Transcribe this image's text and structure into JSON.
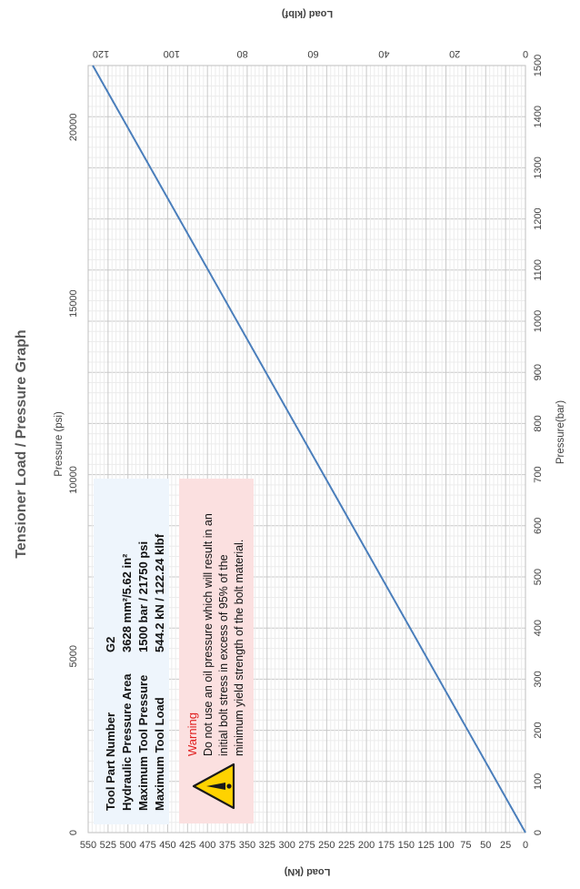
{
  "chart_data": {
    "type": "line",
    "title": "Tensioner Load / Pressure Graph",
    "series": [
      {
        "x_bar": [
          0,
          1500
        ],
        "load_kN": [
          0,
          544.2
        ]
      }
    ],
    "axes": {
      "pressure_bar": {
        "label": "Pressure(bar)",
        "range": [
          0,
          1500
        ],
        "major_step": 100,
        "ticks": [
          "0",
          "100",
          "200",
          "300",
          "400",
          "500",
          "600",
          "700",
          "800",
          "900",
          "1000",
          "1100",
          "1200",
          "1300",
          "1400",
          "1500"
        ]
      },
      "pressure_psi": {
        "label": "Pressure (psi)",
        "range": [
          0,
          21750
        ],
        "ticks": [
          "0",
          "5000",
          "10000",
          "15000",
          "20000"
        ]
      },
      "load_kN": {
        "label": "Load (kN)",
        "range": [
          0,
          550
        ],
        "major_step": 25,
        "ticks": [
          "0",
          "25",
          "50",
          "75",
          "100",
          "125",
          "150",
          "175",
          "200",
          "225",
          "250",
          "275",
          "300",
          "325",
          "350",
          "375",
          "400",
          "425",
          "450",
          "475",
          "500",
          "525",
          "550"
        ]
      },
      "load_klbf": {
        "label": "Load (klbf)",
        "range": [
          0,
          123.6
        ],
        "ticks": [
          "0",
          "20",
          "40",
          "60",
          "80",
          "100",
          "120"
        ]
      }
    },
    "grid": true,
    "orientation": "rotated 90° clockwise",
    "line_color": "#4a7ebb"
  },
  "info_box": {
    "rows": [
      {
        "label": "Tool Part Number",
        "value": "G2"
      },
      {
        "label": "Hydraulic Pressure Area",
        "value": "3628  mm²/5.62 in²"
      },
      {
        "label": "Maximum Tool Pressure",
        "value": "1500  bar / 21750  psi"
      },
      {
        "label": "Maximum Tool Load",
        "value": "544.2 kN / 122.24 klbf"
      }
    ]
  },
  "warning_box": {
    "title": "Warning",
    "lines": [
      "Do not use an oil pressure which will result in an",
      "initial bolt stress in excess of 95% of the",
      "minimum yield strength of the bolt material."
    ],
    "icon": "warning-triangle-icon"
  }
}
